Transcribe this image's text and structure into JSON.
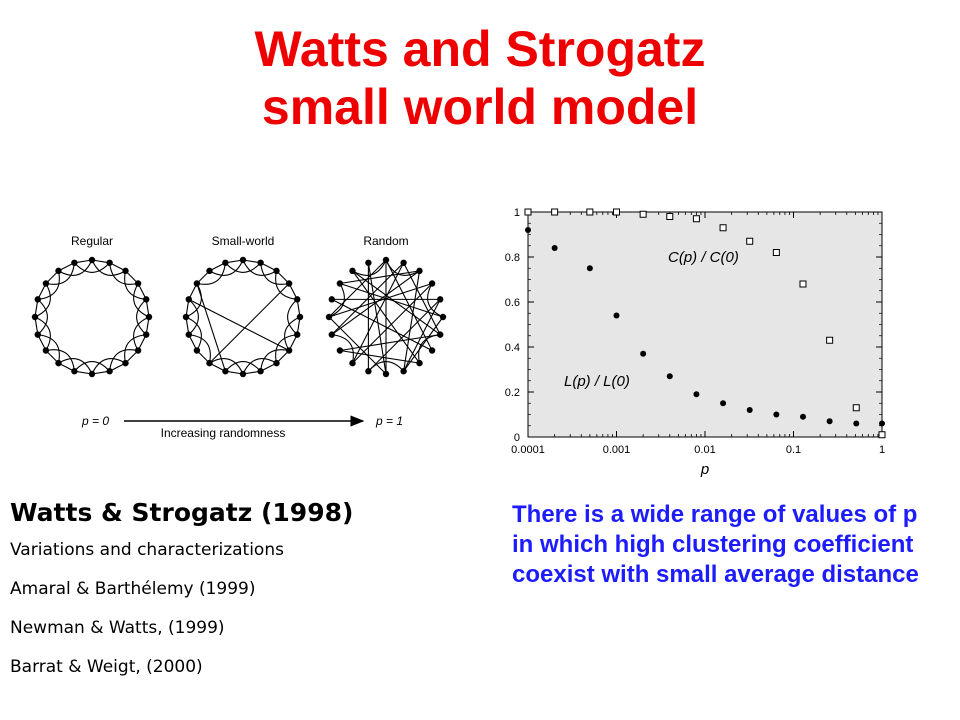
{
  "title_line1": "Watts and Strogatz",
  "title_line2": "small world model",
  "colors": {
    "title": "#ee0000",
    "note": "#1c1cff",
    "plot_bg": "#e6e6e6"
  },
  "networks": {
    "labels": [
      "Regular",
      "Small-world",
      "Random"
    ],
    "p0_label": "p = 0",
    "p1_label": "p = 1",
    "arrow_label": "Increasing randomness"
  },
  "references": {
    "heading": "Watts & Strogatz (1998)",
    "lines": [
      "Variations and characterizations",
      "Amaral & Barthélemy (1999)",
      "Newman & Watts,  (1999)",
      "Barrat & Weigt,  (2000)"
    ]
  },
  "note": "There is a wide range of values of p in which high clustering coefficient coexist with small average distance",
  "chart_data": {
    "type": "scatter",
    "xscale": "log",
    "xlim": [
      0.0001,
      1
    ],
    "ylim": [
      0,
      1
    ],
    "xlabel": "p",
    "x_ticks": [
      "0.0001",
      "0.001",
      "0.01",
      "0.1",
      "1"
    ],
    "y_ticks": [
      "0",
      "0.2",
      "0.4",
      "0.6",
      "0.8",
      "1"
    ],
    "series": [
      {
        "name": "C(p) / C(0)",
        "marker": "open-square",
        "x": [
          0.0001,
          0.0002,
          0.0005,
          0.001,
          0.002,
          0.004,
          0.008,
          0.016,
          0.032,
          0.064,
          0.128,
          0.256,
          0.512,
          1.0
        ],
        "y": [
          1.0,
          1.0,
          1.0,
          1.0,
          0.99,
          0.98,
          0.97,
          0.93,
          0.87,
          0.82,
          0.68,
          0.43,
          0.13,
          0.01
        ]
      },
      {
        "name": "L(p) / L(0)",
        "marker": "filled-circle",
        "x": [
          0.0001,
          0.0002,
          0.0005,
          0.001,
          0.002,
          0.004,
          0.008,
          0.016,
          0.032,
          0.064,
          0.128,
          0.256,
          0.512,
          1.0
        ],
        "y": [
          0.92,
          0.84,
          0.75,
          0.54,
          0.37,
          0.27,
          0.19,
          0.15,
          0.12,
          0.1,
          0.09,
          0.07,
          0.06,
          0.06
        ]
      }
    ]
  }
}
